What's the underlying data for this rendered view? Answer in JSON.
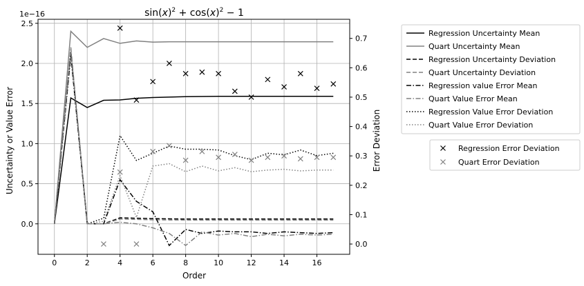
{
  "chart_data": {
    "type": "line",
    "title": "sin(x)² + cos(x)² − 1",
    "title_parts": {
      "a": "sin(",
      "b": "x",
      "c": ")",
      "d": "2",
      "e": " + cos(",
      "f": "x",
      "g": ")",
      "h": "2",
      "i": " − 1"
    },
    "xlabel": "Order",
    "ylabel_left": "Uncertainty or Value Error",
    "ylabel_right": "Error Deviation",
    "left_offset_text": "1e−16",
    "xlim": [
      -1,
      18
    ],
    "ylim_left": [
      -0.38,
      2.55
    ],
    "ylim_right": [
      -0.035,
      0.765
    ],
    "x_ticks": [
      0,
      2,
      4,
      6,
      8,
      10,
      12,
      14,
      16
    ],
    "x_tick_labels": [
      "0",
      "2",
      "4",
      "6",
      "8",
      "10",
      "12",
      "14",
      "16"
    ],
    "y_left_ticks": [
      0.0,
      0.5,
      1.0,
      1.5,
      2.0,
      2.5
    ],
    "y_left_tick_labels": [
      "0.0",
      "0.5",
      "1.0",
      "1.5",
      "2.0",
      "2.5"
    ],
    "y_right_ticks": [
      0.0,
      0.1,
      0.2,
      0.3,
      0.4,
      0.5,
      0.6,
      0.7
    ],
    "y_right_tick_labels": [
      "0.0",
      "0.1",
      "0.2",
      "0.3",
      "0.4",
      "0.5",
      "0.6",
      "0.7"
    ],
    "grid": true,
    "x": [
      0,
      1,
      2,
      3,
      4,
      5,
      6,
      7,
      8,
      9,
      10,
      11,
      12,
      13,
      14,
      15,
      16,
      17
    ],
    "series": [
      {
        "name": "Regression Uncertainty Mean",
        "axis": "left",
        "color": "#000000",
        "dash": "solid",
        "values": [
          0,
          1.57,
          1.45,
          1.54,
          1.545,
          1.565,
          1.575,
          1.58,
          1.585,
          1.588,
          1.59,
          1.59,
          1.59,
          1.59,
          1.59,
          1.59,
          1.59,
          1.59
        ]
      },
      {
        "name": "Quart Uncertainty Mean",
        "axis": "left",
        "color": "#808080",
        "dash": "solid",
        "values": [
          0,
          2.4,
          2.2,
          2.31,
          2.25,
          2.28,
          2.265,
          2.27,
          2.27,
          2.27,
          2.27,
          2.27,
          2.27,
          2.27,
          2.27,
          2.27,
          2.27,
          2.27
        ]
      },
      {
        "name": "Regression Uncertainty Deviation",
        "axis": "left",
        "color": "#000000",
        "dash": "dashed",
        "values": [
          0,
          2.15,
          0,
          0,
          0.075,
          0.07,
          0.065,
          0.062,
          0.06,
          0.06,
          0.06,
          0.06,
          0.06,
          0.06,
          0.06,
          0.06,
          0.06,
          0.06
        ]
      },
      {
        "name": "Quart Uncertainty Deviation",
        "axis": "left",
        "color": "#808080",
        "dash": "dashed",
        "values": [
          0,
          2.15,
          0,
          0,
          0.06,
          0.055,
          0.05,
          0.048,
          0.047,
          0.046,
          0.046,
          0.046,
          0.046,
          0.046,
          0.046,
          0.046,
          0.046,
          0.046
        ]
      },
      {
        "name": "Regression value Error Mean",
        "axis": "left",
        "color": "#000000",
        "dash": "dashdot",
        "values": [
          0,
          2.1,
          0,
          0,
          0.55,
          0.28,
          0.15,
          -0.27,
          -0.07,
          -0.12,
          -0.09,
          -0.1,
          -0.1,
          -0.12,
          -0.1,
          -0.11,
          -0.12,
          -0.11
        ]
      },
      {
        "name": "Quart Value Error Mean",
        "axis": "left",
        "color": "#808080",
        "dash": "dashdot",
        "values": [
          0,
          2.2,
          0,
          0,
          0.02,
          0.0,
          -0.05,
          -0.12,
          -0.27,
          -0.1,
          -0.14,
          -0.12,
          -0.16,
          -0.13,
          -0.15,
          -0.13,
          -0.14,
          -0.13
        ]
      },
      {
        "name": "Regression Value Error Deviation",
        "axis": "left",
        "color": "#000000",
        "dash": "dotted",
        "values": [
          0,
          2.15,
          0,
          0.07,
          1.1,
          0.79,
          0.88,
          0.97,
          0.93,
          0.93,
          0.92,
          0.85,
          0.8,
          0.88,
          0.86,
          0.92,
          0.85,
          0.88
        ]
      },
      {
        "name": "Quart Value Error Deviation",
        "axis": "left",
        "color": "#808080",
        "dash": "dotted",
        "values": [
          0,
          2.15,
          0,
          0.03,
          0.6,
          0.08,
          0.72,
          0.75,
          0.65,
          0.72,
          0.66,
          0.7,
          0.65,
          0.67,
          0.68,
          0.66,
          0.67,
          0.67
        ]
      }
    ],
    "scatter_series": [
      {
        "name": "Regression Error Deviation",
        "axis": "right",
        "color": "#000000",
        "marker": "x",
        "x": [
          4,
          5,
          6,
          7,
          8,
          9,
          10,
          11,
          12,
          13,
          14,
          15,
          16,
          17
        ],
        "values": [
          0.735,
          0.49,
          0.553,
          0.615,
          0.58,
          0.585,
          0.58,
          0.52,
          0.5,
          0.56,
          0.535,
          0.58,
          0.53,
          0.545
        ]
      },
      {
        "name": "Quart Error Deviation",
        "axis": "right",
        "color": "#808080",
        "marker": "x",
        "x": [
          3,
          4,
          5,
          6,
          7,
          8,
          9,
          10,
          11,
          12,
          13,
          14,
          15,
          16,
          17
        ],
        "values": [
          0.0,
          0.245,
          0.0,
          0.315,
          0.335,
          0.285,
          0.315,
          0.295,
          0.305,
          0.285,
          0.295,
          0.3,
          0.29,
          0.295,
          0.295
        ]
      }
    ],
    "legends": [
      {
        "placement": "outside right, upper",
        "entries": [
          "Regression Uncertainty Mean",
          "Quart Uncertainty Mean",
          "Regression Uncertainty Deviation",
          "Quart Uncertainty Deviation",
          "Regression value Error Mean",
          "Quart Value Error Mean",
          "Regression Value Error Deviation",
          "Quart Value Error Deviation"
        ]
      },
      {
        "placement": "outside right, lower",
        "entries": [
          "Regression Error Deviation",
          "Quart Error Deviation"
        ]
      }
    ]
  }
}
